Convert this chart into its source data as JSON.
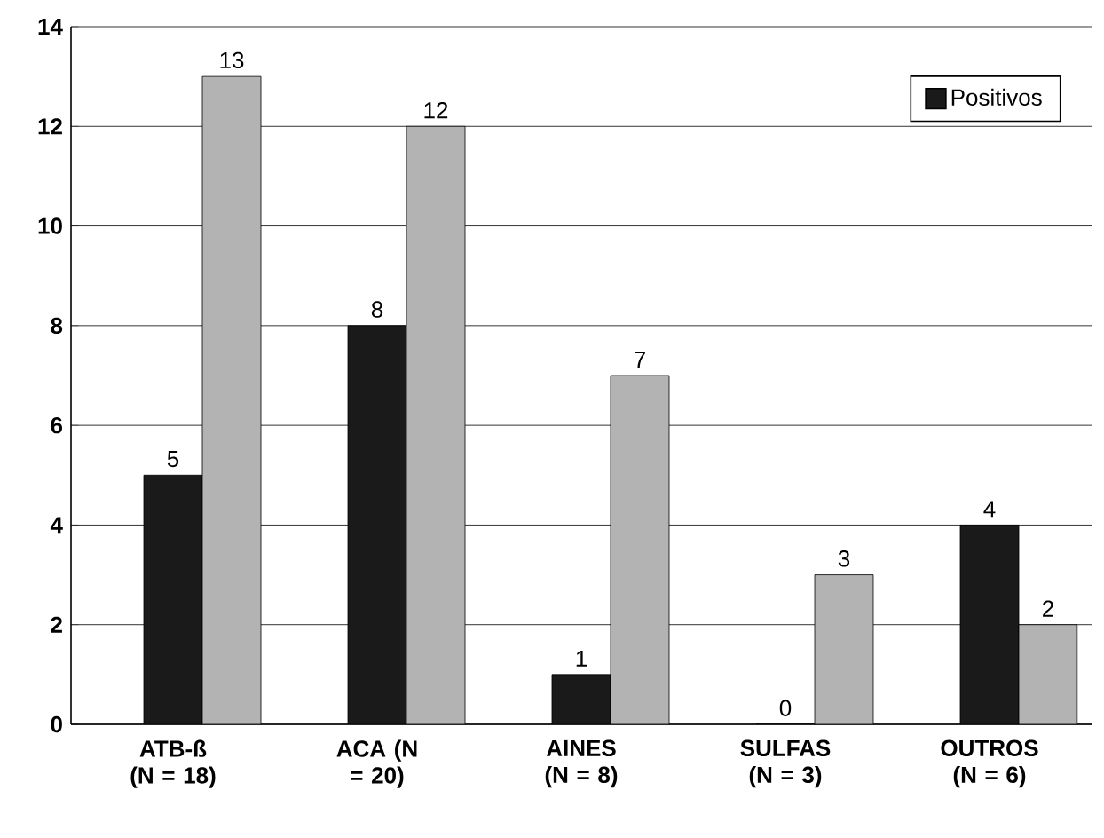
{
  "chart_data": {
    "type": "bar",
    "categories": [
      "ATB-ß (N = 18)",
      "ACA (N = 20)",
      "AINES (N = 8)",
      "SULFAS (N = 3)",
      "OUTROS (N = 6)"
    ],
    "series": [
      {
        "name": "Positivos",
        "color": "#1a1a1a",
        "values": [
          5,
          8,
          1,
          0,
          4
        ]
      },
      {
        "color": "#b3b3b3",
        "values": [
          13,
          12,
          7,
          3,
          2
        ]
      }
    ],
    "ylim": [
      0,
      14
    ],
    "yticks": [
      0,
      2,
      4,
      6,
      8,
      10,
      12,
      14
    ],
    "grid": "y",
    "legend": "top right",
    "data_labels": true
  }
}
